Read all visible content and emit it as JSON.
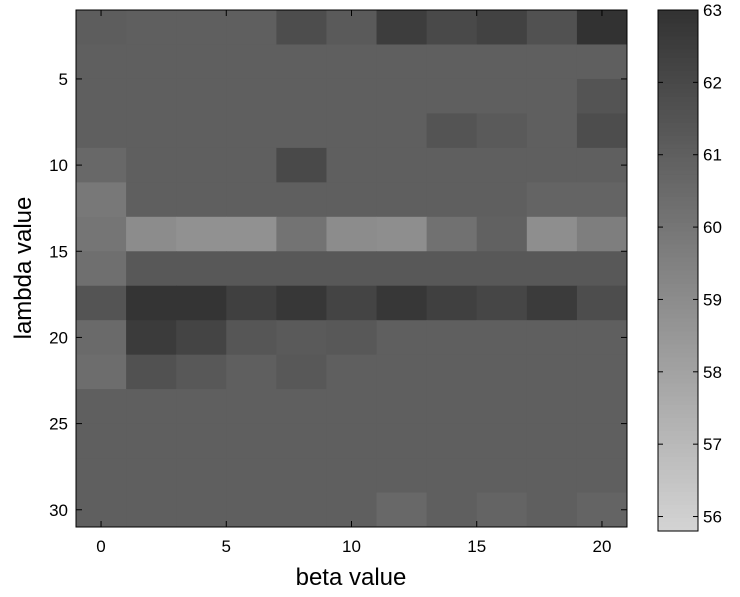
{
  "chart_data": {
    "type": "heatmap",
    "title": "",
    "xlabel": "beta value",
    "ylabel": "lambda value",
    "x": [
      0,
      2,
      4,
      6,
      8,
      10,
      12,
      14,
      16,
      18,
      20
    ],
    "y": [
      2,
      4,
      6,
      8,
      10,
      12,
      14,
      16,
      18,
      20,
      22,
      24,
      26,
      28,
      30
    ],
    "x_ticks": [
      0,
      5,
      10,
      15,
      20
    ],
    "y_ticks": [
      5,
      10,
      15,
      20,
      25,
      30
    ],
    "xlim": [
      -1,
      21
    ],
    "ylim": [
      1,
      31
    ],
    "y_reversed": true,
    "colormap": "gray",
    "clim": [
      55.8,
      63
    ],
    "colorbar_ticks": [
      56,
      57,
      58,
      59,
      60,
      61,
      62,
      63
    ],
    "grid": false,
    "z": [
      [
        61.1,
        61.0,
        61.0,
        61.0,
        61.8,
        61.2,
        62.5,
        62.0,
        62.3,
        61.6,
        63.0
      ],
      [
        61.0,
        61.0,
        61.0,
        61.0,
        61.0,
        61.0,
        61.0,
        61.0,
        61.0,
        61.0,
        61.0
      ],
      [
        61.0,
        61.0,
        61.0,
        61.0,
        61.0,
        61.0,
        61.0,
        61.0,
        61.0,
        61.0,
        61.5
      ],
      [
        61.0,
        61.0,
        61.0,
        61.0,
        61.0,
        61.0,
        61.0,
        61.5,
        61.2,
        61.0,
        61.8
      ],
      [
        60.6,
        61.0,
        61.0,
        61.0,
        62.0,
        61.0,
        61.0,
        61.0,
        61.0,
        61.0,
        61.0
      ],
      [
        59.9,
        61.0,
        61.0,
        61.0,
        61.0,
        61.0,
        61.0,
        61.0,
        61.0,
        60.8,
        60.8
      ],
      [
        60.0,
        59.0,
        58.8,
        58.8,
        60.1,
        59.0,
        58.9,
        60.2,
        60.9,
        58.9,
        59.6
      ],
      [
        60.3,
        61.3,
        61.3,
        61.3,
        61.3,
        61.3,
        61.3,
        61.3,
        61.3,
        61.3,
        61.3
      ],
      [
        61.5,
        62.9,
        62.9,
        62.4,
        62.8,
        62.2,
        62.8,
        62.4,
        62.1,
        62.6,
        61.8
      ],
      [
        60.5,
        62.6,
        62.2,
        61.4,
        61.2,
        61.3,
        61.0,
        61.0,
        61.0,
        61.0,
        61.0
      ],
      [
        60.4,
        61.6,
        61.3,
        61.0,
        61.3,
        61.0,
        61.0,
        61.0,
        61.0,
        61.0,
        61.0
      ],
      [
        61.0,
        61.0,
        61.0,
        61.0,
        61.0,
        61.0,
        61.0,
        61.0,
        61.0,
        61.0,
        61.0
      ],
      [
        61.0,
        61.0,
        61.0,
        61.0,
        61.0,
        61.0,
        61.0,
        61.0,
        61.0,
        61.0,
        61.0
      ],
      [
        61.0,
        61.0,
        61.0,
        61.0,
        61.0,
        61.0,
        61.0,
        61.0,
        61.0,
        61.0,
        61.0
      ],
      [
        61.0,
        61.0,
        61.0,
        61.0,
        61.0,
        61.0,
        60.6,
        61.0,
        60.8,
        61.0,
        60.8
      ]
    ]
  }
}
